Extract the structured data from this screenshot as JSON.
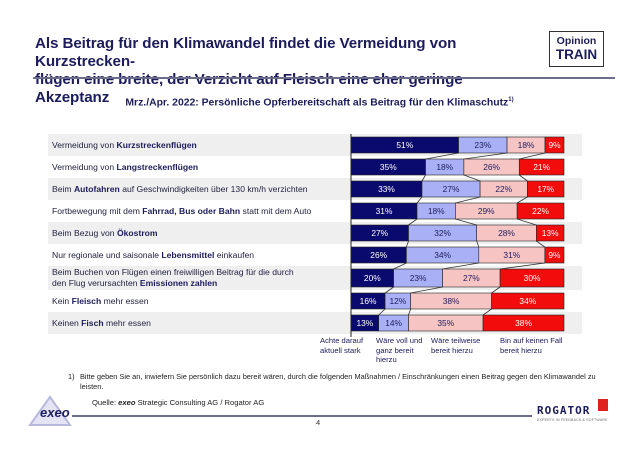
{
  "header": {
    "title_line1": "Als Beitrag für den Klimawandel findet die Vermeidung von Kurzstrecken-",
    "title_line2": "flügen eine breite, der Verzicht auf Fleisch eine eher geringe Akzeptanz",
    "badge_top": "Opinion",
    "badge_bottom": "TRAIN"
  },
  "chart_data": {
    "type": "bar",
    "orientation": "horizontal",
    "stacked": true,
    "normalized": true,
    "title": "Mrz./Apr. 2022: Persönliche Opferbereitschaft als Beitrag für den Klimaschutz",
    "title_footnote": "1)",
    "xlabel": "",
    "ylabel": "",
    "xlim": [
      0,
      100
    ],
    "unit": "%",
    "grid": false,
    "legend_position": "bottom",
    "categories": [
      {
        "pre": "Vermeidung von ",
        "bold": "Kurzstreckenflügen",
        "post": ""
      },
      {
        "pre": "Vermeidung von ",
        "bold": "Langstreckenflügen",
        "post": ""
      },
      {
        "pre": "Beim ",
        "bold": "Autofahren",
        "post": " auf Geschwindigkeiten über 130 km/h verzichten"
      },
      {
        "pre": "Fortbewegung mit dem ",
        "bold": "Fahrrad, Bus oder Bahn",
        "post": " statt mit dem Auto"
      },
      {
        "pre": "Beim Bezug von ",
        "bold": "Ökostrom",
        "post": ""
      },
      {
        "pre": "Nur regionale und saisonale ",
        "bold": "Lebensmittel",
        "post": " einkaufen"
      },
      {
        "pre": "Beim Buchen von Flügen einen freiwilligen Beitrag für die durch den Flug verursachten ",
        "bold": "Emissionen zahlen",
        "post": ""
      },
      {
        "pre": "Kein ",
        "bold": "Fleisch",
        "post": " mehr essen"
      },
      {
        "pre": "Keinen ",
        "bold": "Fisch",
        "post": " mehr essen"
      }
    ],
    "series": [
      {
        "name": "Achte darauf aktuell stark",
        "color": "#0a0a6e",
        "label_color": "#ffffff",
        "values": [
          51,
          35,
          33,
          31,
          27,
          26,
          20,
          16,
          13
        ]
      },
      {
        "name": "Wäre voll und ganz bereit hierzu",
        "color": "#aab0f5",
        "label_color": "#1c1c5c",
        "values": [
          23,
          18,
          27,
          18,
          32,
          34,
          23,
          12,
          14
        ]
      },
      {
        "name": "Wäre teilweise bereit hierzu",
        "color": "#f7c4c4",
        "label_color": "#1c1c5c",
        "values": [
          18,
          26,
          22,
          29,
          28,
          31,
          27,
          38,
          35
        ]
      },
      {
        "name": "Bin auf keinen Fall bereit hierzu",
        "color": "#f20c0c",
        "label_color": "#ffffff",
        "values": [
          9,
          21,
          17,
          22,
          13,
          9,
          30,
          34,
          38
        ]
      }
    ]
  },
  "legend": [
    {
      "line1": "Achte darauf",
      "line2": "aktuell stark",
      "line3": ""
    },
    {
      "line1": "Wäre voll und",
      "line2": "ganz bereit",
      "line3": "hierzu"
    },
    {
      "line1": "Wäre teilweise",
      "line2": "bereit hierzu",
      "line3": ""
    },
    {
      "line1": "Bin auf keinen Fall",
      "line2": "bereit hierzu",
      "line3": ""
    }
  ],
  "footnote": {
    "marker": "1)",
    "text": "Bitte geben Sie an, inwiefern Sie persönlich dazu bereit wären, durch die folgenden Maßnahmen / Einschränkungen einen Beitrag gegen den Klimawandel zu leisten."
  },
  "source": {
    "prefix": "Quelle: ",
    "brand": "exeo",
    "rest": " Strategic Consulting AG / Rogator AG"
  },
  "page_number": "4",
  "logos": {
    "left": "exeo",
    "right": "ROGATOR",
    "right_tagline": "EXPERTS IN FEEDBACK & SOFTWARE"
  }
}
